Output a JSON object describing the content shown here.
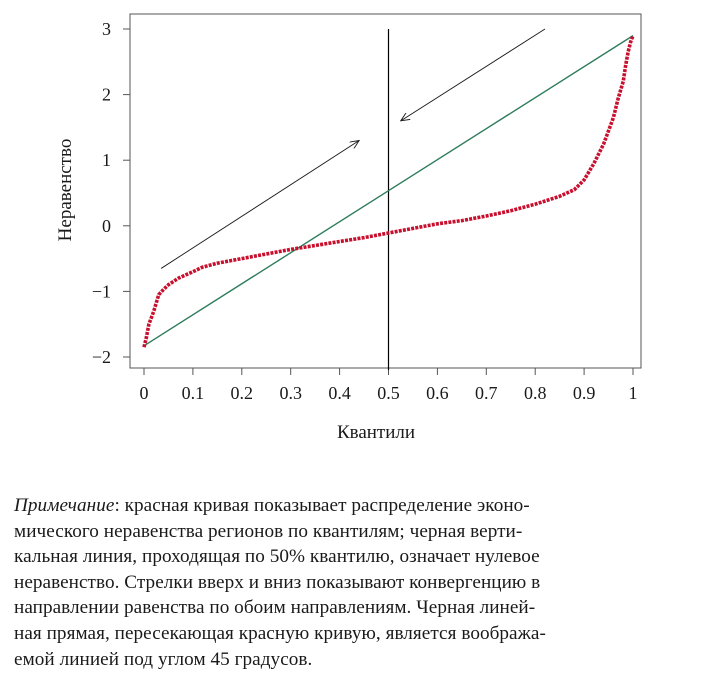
{
  "chart_data": {
    "type": "line",
    "title": "",
    "xlabel": "Квантили",
    "ylabel": "Неравенство",
    "xlim": [
      0,
      1
    ],
    "ylim": [
      -2,
      3
    ],
    "x_ticks": [
      0,
      0.1,
      0.2,
      0.3,
      0.4,
      0.5,
      0.6,
      0.7,
      0.8,
      0.9,
      1
    ],
    "x_tick_labels": [
      "0",
      "0.1",
      "0.2",
      "0.3",
      "0.4",
      "0.5",
      "0.6",
      "0.7",
      "0.8",
      "0.9",
      "1"
    ],
    "y_ticks": [
      -2,
      -1,
      0,
      1,
      2,
      3
    ],
    "y_tick_labels": [
      "−2",
      "−1",
      "0",
      "1",
      "2",
      "3"
    ],
    "grid": false,
    "legend": "none",
    "series": [
      {
        "kind": "curve",
        "color": "#c8102e",
        "x": [
          0,
          0.005,
          0.01,
          0.02,
          0.03,
          0.04,
          0.05,
          0.07,
          0.1,
          0.12,
          0.15,
          0.2,
          0.25,
          0.3,
          0.35,
          0.4,
          0.45,
          0.5,
          0.55,
          0.6,
          0.65,
          0.7,
          0.75,
          0.8,
          0.85,
          0.88,
          0.9,
          0.92,
          0.94,
          0.96,
          0.97,
          0.98,
          0.985,
          0.99,
          0.995,
          1
        ],
        "y": [
          -1.85,
          -1.7,
          -1.5,
          -1.3,
          -1.05,
          -0.97,
          -0.9,
          -0.8,
          -0.7,
          -0.63,
          -0.57,
          -0.5,
          -0.43,
          -0.36,
          -0.3,
          -0.24,
          -0.18,
          -0.11,
          -0.04,
          0.03,
          0.08,
          0.15,
          0.23,
          0.33,
          0.45,
          0.55,
          0.7,
          0.95,
          1.25,
          1.65,
          1.95,
          2.2,
          2.45,
          2.65,
          2.8,
          2.9
        ]
      },
      {
        "kind": "line",
        "color": "#2e7d5b",
        "x": [
          0,
          1
        ],
        "y": [
          -1.83,
          2.9
        ]
      },
      {
        "kind": "vertical-line",
        "color": "#000000",
        "x": [
          0.5,
          0.5
        ],
        "y": [
          -2.2,
          3
        ]
      }
    ],
    "annotations": [
      {
        "kind": "arrow-up",
        "from": [
          0.035,
          -0.65
        ],
        "to": [
          0.44,
          1.3
        ]
      },
      {
        "kind": "arrow-down",
        "from": [
          0.82,
          3
        ],
        "to": [
          0.525,
          1.6
        ]
      }
    ]
  },
  "note": {
    "label": "Примечание",
    "lines": [
      ": красная кривая показывает распределение эконо-",
      "мического неравенства регионов по квантилям; черная верти-",
      "кальная линия, проходящая по 50% квантилю, означает нулевое",
      "неравенство. Стрелки вверх и вниз показывают конвергенцию в",
      "направлении равенства по обоим направлениям. Черная линей-",
      "ная прямая, пересекающая красную кривую, является вообража-",
      "емой линией под углом 45 градусов."
    ]
  }
}
